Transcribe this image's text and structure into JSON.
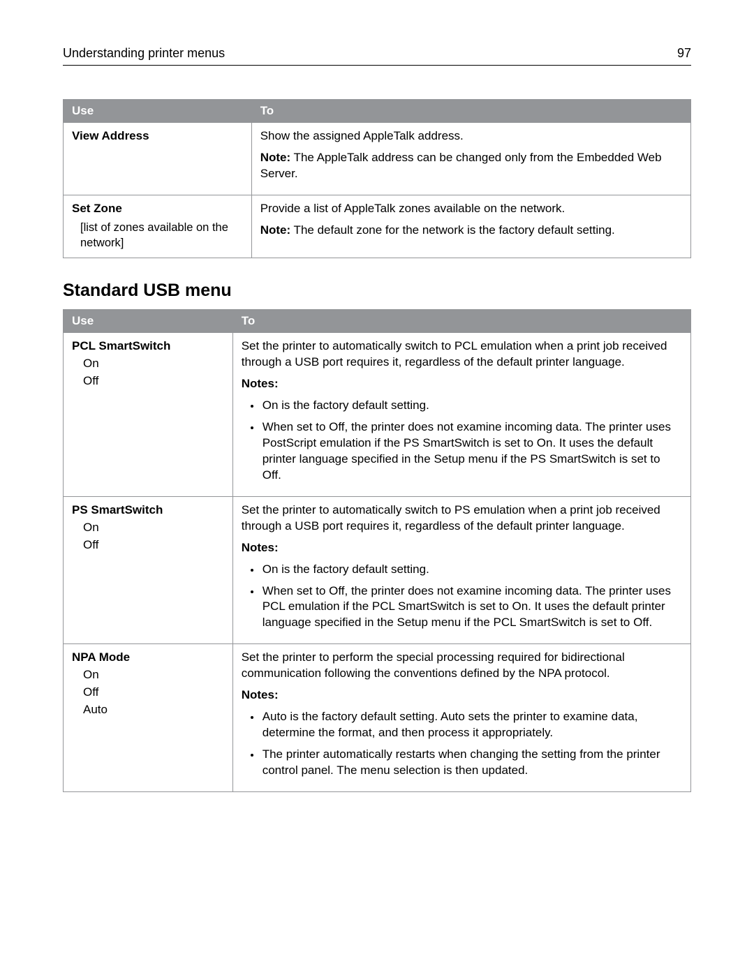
{
  "header": {
    "title": "Understanding printer menus",
    "page_number": "97"
  },
  "colors": {
    "table_header_bg": "#939598",
    "table_header_fg": "#ffffff",
    "border": "#939598",
    "text": "#000000",
    "bg": "#ffffff"
  },
  "tables": {
    "appletalk": {
      "columns": {
        "use": "Use",
        "to": "To"
      },
      "rows": [
        {
          "use_title": "View Address",
          "use_sub": "",
          "to_main": "Show the assigned AppleTalk address.",
          "note_label": "Note:",
          "note_text": " The AppleTalk address can be changed only from the Embedded Web Server."
        },
        {
          "use_title": "Set Zone",
          "use_sub": "[list of zones available on the network]",
          "to_main": "Provide a list of AppleTalk zones available on the network.",
          "note_label": "Note:",
          "note_text": " The default zone for the network is the factory default setting."
        }
      ]
    },
    "usb": {
      "heading": "Standard USB menu",
      "columns": {
        "use": "Use",
        "to": "To"
      },
      "rows": [
        {
          "use_title": "PCL SmartSwitch",
          "use_opts": [
            "On",
            "Off"
          ],
          "to_main": "Set the printer to automatically switch to PCL emulation when a print job received through a USB port requires it, regardless of the default printer language.",
          "notes_label": "Notes:",
          "notes": [
            "On is the factory default setting.",
            "When set to Off, the printer does not examine incoming data. The printer uses PostScript emulation if the PS SmartSwitch is set to On. It uses the default printer language specified in the Setup menu if the PS SmartSwitch is set to Off."
          ]
        },
        {
          "use_title": "PS SmartSwitch",
          "use_opts": [
            "On",
            "Off"
          ],
          "to_main": "Set the printer to automatically switch to PS emulation when a print job received through a USB port requires it, regardless of the default printer language.",
          "notes_label": "Notes:",
          "notes": [
            "On is the factory default setting.",
            "When set to Off, the printer does not examine incoming data. The printer uses PCL emulation if the PCL SmartSwitch is set to On. It uses the default printer language specified in the Setup menu if the PCL SmartSwitch is set to Off."
          ]
        },
        {
          "use_title": "NPA Mode",
          "use_opts": [
            "On",
            "Off",
            "Auto"
          ],
          "to_main": "Set the printer to perform the special processing required for bidirectional communication following the conventions defined by the NPA protocol.",
          "notes_label": "Notes:",
          "notes": [
            "Auto is the factory default setting. Auto sets the printer to examine data, determine the format, and then process it appropriately.",
            "The printer automatically restarts when changing the setting from the printer control panel. The menu selection is then updated."
          ]
        }
      ]
    }
  }
}
